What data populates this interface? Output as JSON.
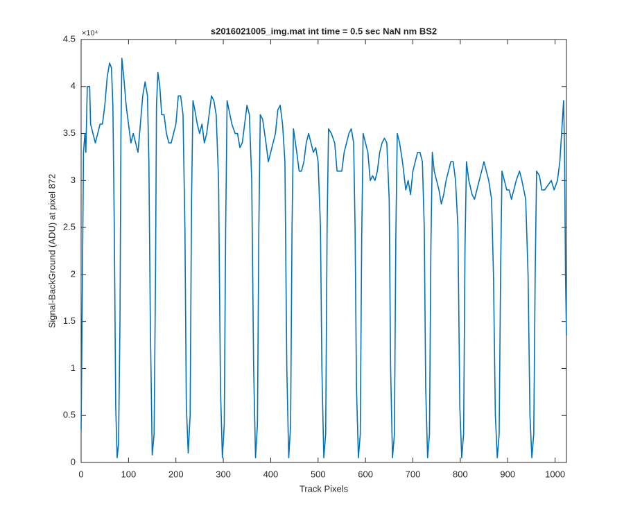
{
  "chart_data": {
    "type": "line",
    "title": "s2016021005_img.mat int time = 0.5 sec  NaN nm BS2",
    "x_label": "Track Pixels",
    "y_label": "Signal-BackGround (ADU) at pixel 872",
    "y_multiplier": "×10⁴",
    "xlim": [
      0,
      1024
    ],
    "xticks": [
      0,
      100,
      200,
      300,
      400,
      500,
      600,
      700,
      800,
      900,
      1000
    ],
    "ylim": [
      0,
      4.5
    ],
    "yticks": [
      0,
      0.5,
      1,
      1.5,
      2,
      2.5,
      3,
      3.5,
      4,
      4.5
    ],
    "grid": false,
    "series": [
      {
        "color": "#0072bd",
        "x": [
          0,
          2,
          5,
          8,
          10,
          13,
          18,
          20,
          25,
          30,
          35,
          40,
          45,
          50,
          55,
          60,
          64,
          67,
          70,
          73,
          76,
          79,
          82,
          84,
          86,
          90,
          95,
          100,
          105,
          110,
          115,
          120,
          125,
          130,
          135,
          140,
          143,
          146,
          150,
          154,
          157,
          159,
          162,
          166,
          170,
          175,
          180,
          185,
          190,
          195,
          200,
          205,
          210,
          215,
          219,
          222,
          226,
          230,
          233,
          236,
          240,
          245,
          250,
          255,
          260,
          265,
          270,
          275,
          280,
          285,
          290,
          294,
          298,
          302,
          305,
          308,
          312,
          318,
          325,
          330,
          335,
          340,
          345,
          350,
          355,
          360,
          364,
          368,
          372,
          375,
          378,
          383,
          390,
          395,
          400,
          405,
          410,
          415,
          420,
          425,
          430,
          434,
          438,
          442,
          445,
          448,
          455,
          460,
          465,
          470,
          475,
          480,
          485,
          490,
          495,
          500,
          505,
          508,
          512,
          516,
          519,
          522,
          528,
          535,
          540,
          545,
          550,
          555,
          560,
          565,
          570,
          575,
          578,
          581,
          585,
          589,
          592,
          595,
          600,
          605,
          610,
          615,
          620,
          625,
          630,
          635,
          640,
          645,
          650,
          653,
          657,
          661,
          664,
          667,
          672,
          678,
          685,
          690,
          695,
          700,
          705,
          710,
          715,
          720,
          724,
          727,
          731,
          735,
          738,
          741,
          745,
          750,
          755,
          760,
          765,
          770,
          775,
          780,
          785,
          790,
          795,
          799,
          803,
          807,
          810,
          813,
          818,
          825,
          830,
          835,
          840,
          845,
          850,
          855,
          860,
          866,
          870,
          874,
          878,
          882,
          885,
          888,
          893,
          898,
          903,
          908,
          913,
          918,
          925,
          930,
          938,
          943,
          947,
          951,
          955,
          958,
          961,
          967,
          972,
          978,
          985,
          992,
          998,
          1005,
          1010,
          1015,
          1018,
          1020,
          1022,
          1024
        ],
        "values": [
          0.35,
          1.5,
          3.3,
          3.5,
          3.3,
          4.0,
          4.0,
          3.6,
          3.5,
          3.4,
          3.5,
          3.6,
          3.6,
          3.8,
          4.1,
          4.25,
          4.2,
          3.8,
          2.5,
          0.6,
          0.05,
          0.2,
          1.5,
          3.5,
          4.3,
          4.1,
          3.8,
          3.6,
          3.4,
          3.5,
          3.4,
          3.3,
          3.6,
          3.9,
          4.05,
          3.9,
          3.2,
          1.5,
          0.08,
          0.3,
          2.0,
          3.8,
          4.15,
          4.0,
          3.7,
          3.7,
          3.5,
          3.4,
          3.4,
          3.5,
          3.6,
          3.9,
          3.9,
          3.7,
          2.5,
          0.6,
          0.1,
          0.5,
          2.8,
          3.85,
          3.75,
          3.6,
          3.5,
          3.6,
          3.4,
          3.5,
          3.7,
          3.9,
          3.85,
          3.7,
          3.0,
          0.8,
          0.05,
          0.4,
          2.5,
          3.85,
          3.75,
          3.6,
          3.5,
          3.5,
          3.35,
          3.4,
          3.6,
          3.8,
          3.7,
          3.0,
          1.0,
          0.05,
          0.4,
          2.5,
          3.7,
          3.65,
          3.4,
          3.2,
          3.3,
          3.4,
          3.5,
          3.75,
          3.8,
          3.6,
          3.2,
          1.0,
          0.05,
          0.4,
          2.5,
          3.55,
          3.3,
          3.1,
          3.1,
          3.2,
          3.4,
          3.5,
          3.4,
          3.3,
          3.35,
          3.2,
          2.5,
          1.0,
          0.05,
          0.3,
          2.5,
          3.55,
          3.5,
          3.4,
          3.1,
          3.1,
          3.1,
          3.3,
          3.4,
          3.5,
          3.55,
          3.4,
          2.5,
          0.8,
          0.05,
          0.3,
          2.4,
          3.5,
          3.4,
          3.3,
          3.0,
          3.05,
          3.0,
          3.1,
          3.3,
          3.4,
          3.45,
          3.4,
          2.8,
          1.0,
          0.05,
          0.3,
          2.4,
          3.5,
          3.4,
          3.2,
          2.9,
          3.0,
          2.85,
          3.1,
          3.2,
          3.3,
          3.3,
          3.2,
          2.5,
          0.8,
          0.05,
          0.3,
          2.3,
          3.3,
          3.1,
          3.0,
          2.9,
          2.75,
          2.85,
          3.0,
          3.1,
          3.2,
          3.2,
          3.0,
          2.5,
          0.6,
          0.05,
          0.3,
          2.3,
          3.2,
          3.0,
          2.85,
          2.8,
          2.9,
          3.0,
          3.1,
          3.2,
          3.1,
          3.0,
          2.8,
          2.0,
          0.5,
          0.05,
          0.3,
          2.0,
          3.1,
          3.0,
          2.9,
          2.9,
          2.8,
          2.9,
          3.0,
          3.1,
          3.0,
          2.8,
          2.0,
          0.5,
          0.05,
          0.3,
          2.0,
          3.1,
          3.05,
          2.9,
          2.9,
          2.95,
          3.0,
          2.9,
          3.0,
          3.2,
          3.6,
          3.85,
          3.3,
          2.0,
          1.35
        ]
      }
    ]
  }
}
